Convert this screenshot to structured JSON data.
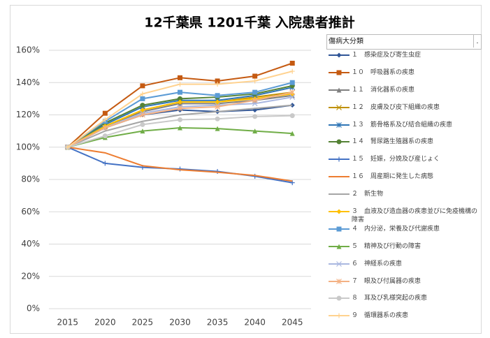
{
  "chart_data": {
    "type": "line",
    "title": "12千葉県 1201千葉 入院患者推計",
    "legend_title": "傷病大分類",
    "categories": [
      "2015",
      "2020",
      "2025",
      "2030",
      "2035",
      "2040",
      "2045"
    ],
    "ylim": [
      0,
      160
    ],
    "yticks": [
      {
        "value": 0,
        "label": "0%"
      },
      {
        "value": 20,
        "label": "20%"
      },
      {
        "value": 40,
        "label": "40%"
      },
      {
        "value": 60,
        "label": "60%"
      },
      {
        "value": 80,
        "label": "80%"
      },
      {
        "value": 100,
        "label": "100%"
      },
      {
        "value": 120,
        "label": "120%"
      },
      {
        "value": 140,
        "label": "140%"
      },
      {
        "value": 160,
        "label": "160%"
      }
    ],
    "grid": true,
    "legend": "right",
    "series": [
      {
        "name": "１　感染症及び寄生虫症",
        "color": "#2F5597",
        "marker": "diamond",
        "values": [
          100,
          112,
          120,
          123,
          122,
          123,
          126
        ]
      },
      {
        "name": "１０　呼吸器系の疾患",
        "color": "#C55A11",
        "marker": "square",
        "values": [
          100,
          121,
          138,
          143,
          141,
          144,
          152
        ]
      },
      {
        "name": "１１　消化器系の疾患",
        "color": "#7F7F7F",
        "marker": "triangle",
        "values": [
          100,
          113,
          122,
          127,
          127,
          129,
          132
        ]
      },
      {
        "name": "１２　皮膚及び皮下組織の疾患",
        "color": "#BF9000",
        "marker": "x",
        "values": [
          100,
          113,
          123,
          128,
          128,
          131,
          134
        ]
      },
      {
        "name": "１３　筋骨格系及び結合組織の疾患",
        "color": "#2E75B6",
        "marker": "star",
        "values": [
          100,
          114,
          125,
          129,
          129,
          132,
          137
        ]
      },
      {
        "name": "１４　腎尿路生殖器系の疾患",
        "color": "#548235",
        "marker": "circle",
        "values": [
          100,
          115,
          126,
          130,
          131,
          133,
          138
        ]
      },
      {
        "name": "１５　妊娠，分娩及び産じょく",
        "color": "#4472C4",
        "marker": "plus",
        "values": [
          100,
          90,
          87.5,
          86.5,
          85,
          82,
          78
        ]
      },
      {
        "name": "１６　周産期に発生した病態",
        "color": "#ED7D31",
        "marker": "none",
        "values": [
          100,
          96.5,
          88.5,
          86,
          84.5,
          82.5,
          79
        ]
      },
      {
        "name": "２　新生物",
        "color": "#A5A5A5",
        "marker": "none",
        "values": [
          100,
          110,
          116,
          120,
          122,
          124,
          126
        ]
      },
      {
        "name": "３　血液及び造血器の疾患並びに免疫機構の障害",
        "color": "#FFC000",
        "marker": "diamond",
        "values": [
          100,
          113,
          123,
          128,
          128,
          130,
          133
        ]
      },
      {
        "name": "４　内分泌，栄養及び代謝疾患",
        "color": "#5B9BD5",
        "marker": "square",
        "values": [
          100,
          116,
          130,
          134,
          132,
          134,
          140
        ]
      },
      {
        "name": "５　精神及び行動の障害",
        "color": "#70AD47",
        "marker": "triangle",
        "values": [
          100,
          106,
          110,
          112,
          111.5,
          110,
          108.5
        ]
      },
      {
        "name": "６　神経系の疾患",
        "color": "#A9B7E0",
        "marker": "x",
        "values": [
          100,
          112,
          121,
          125,
          126,
          127,
          131
        ]
      },
      {
        "name": "７　眼及び付属器の疾患",
        "color": "#F4B183",
        "marker": "star",
        "values": [
          100,
          112,
          120,
          124,
          125,
          129,
          134
        ]
      },
      {
        "name": "８　耳及び乳様突起の疾患",
        "color": "#C9C9C9",
        "marker": "circle",
        "values": [
          100,
          107,
          114,
          117,
          117.5,
          119,
          119.5
        ]
      },
      {
        "name": "９　循環器系の疾患",
        "color": "#FFD28F",
        "marker": "plus",
        "values": [
          100,
          117,
          133,
          139,
          139,
          141,
          147
        ]
      }
    ]
  }
}
